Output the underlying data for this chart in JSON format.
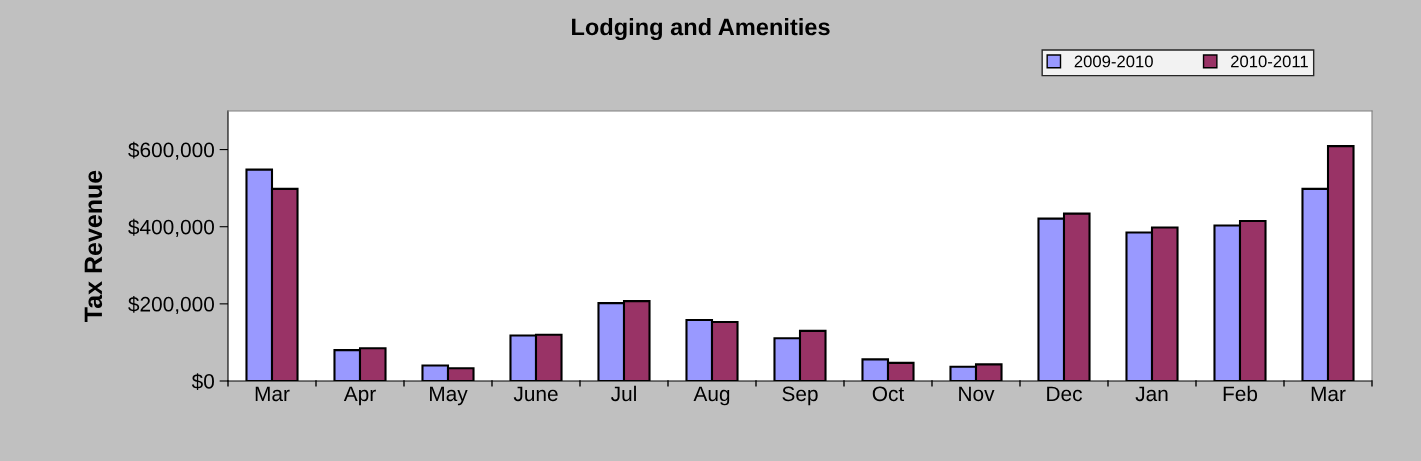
{
  "chart_data": {
    "type": "bar",
    "title": "Lodging and Amenities",
    "ylabel": "Tax Revenue",
    "categories": [
      "Mar",
      "Apr",
      "May",
      "June",
      "Jul",
      "Aug",
      "Sep",
      "Oct",
      "Nov",
      "Dec",
      "Jan",
      "Feb",
      "Mar"
    ],
    "series": [
      {
        "name": "2009-2010",
        "color": "#9999ff",
        "values": [
          548000,
          80000,
          40000,
          118000,
          202000,
          158000,
          111000,
          56000,
          37000,
          421000,
          385000,
          403000,
          498000
        ]
      },
      {
        "name": "2010-2011",
        "color": "#993366",
        "values": [
          498000,
          85000,
          33000,
          120000,
          207000,
          153000,
          130000,
          47000,
          43000,
          434000,
          398000,
          415000,
          609000
        ]
      }
    ],
    "ylim": [
      0,
      700000
    ],
    "yticks": [
      {
        "value": 0,
        "label": "$0"
      },
      {
        "value": 200000,
        "label": "$200,000"
      },
      {
        "value": 400000,
        "label": "$400,000"
      },
      {
        "value": 600000,
        "label": "$600,000"
      }
    ],
    "grid": false,
    "legend": "top right"
  }
}
